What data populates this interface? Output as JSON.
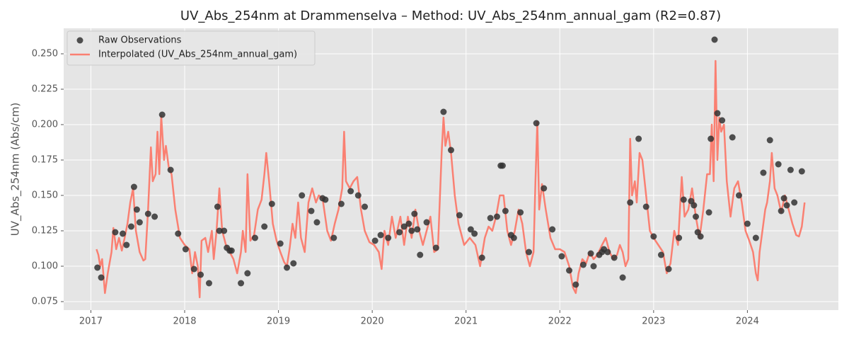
{
  "chart_data": {
    "type": "scatter",
    "title": "UV_Abs_254nm at Drammenselva – Method: UV_Abs_254nm_annual_gam (R2=0.87)",
    "y_label": "UV_Abs_254nm (Abs/cm)",
    "xlim": [
      2016.71,
      2024.97
    ],
    "ylim": [
      0.069,
      0.268
    ],
    "xticks": [
      2017,
      2018,
      2019,
      2020,
      2021,
      2022,
      2023,
      2024
    ],
    "yticks": [
      0.075,
      {
        "value": 0.1,
        "label": "0.100"
      },
      0.125,
      {
        "value": 0.15,
        "label": "0.150"
      },
      0.175,
      {
        "value": 0.2,
        "label": "0.200"
      },
      0.225,
      {
        "value": 0.25,
        "label": "0.250"
      }
    ],
    "grid": true,
    "legend": "upper left",
    "series": [
      {
        "name": "Raw Observations",
        "type": "scatter",
        "color": "#333333",
        "x": [
          2017.07,
          2017.11,
          2017.26,
          2017.34,
          2017.38,
          2017.43,
          2017.46,
          2017.49,
          2017.52,
          2017.61,
          2017.68,
          2017.76,
          2017.85,
          2017.93,
          2018.01,
          2018.1,
          2018.17,
          2018.26,
          2018.35,
          2018.37,
          2018.42,
          2018.45,
          2018.48,
          2018.5,
          2018.6,
          2018.67,
          2018.75,
          2018.85,
          2018.93,
          2019.02,
          2019.09,
          2019.16,
          2019.25,
          2019.35,
          2019.41,
          2019.47,
          2019.5,
          2019.59,
          2019.67,
          2019.77,
          2019.85,
          2019.92,
          2020.03,
          2020.09,
          2020.17,
          2020.29,
          2020.34,
          2020.39,
          2020.42,
          2020.45,
          2020.48,
          2020.51,
          2020.58,
          2020.68,
          2020.76,
          2020.84,
          2020.93,
          2021.05,
          2021.09,
          2021.17,
          2021.26,
          2021.33,
          2021.37,
          2021.39,
          2021.42,
          2021.48,
          2021.51,
          2021.58,
          2021.67,
          2021.75,
          2021.83,
          2021.92,
          2022.02,
          2022.1,
          2022.17,
          2022.25,
          2022.33,
          2022.36,
          2022.42,
          2022.45,
          2022.47,
          2022.51,
          2022.58,
          2022.67,
          2022.75,
          2022.84,
          2022.92,
          2023.0,
          2023.08,
          2023.16,
          2023.27,
          2023.32,
          2023.4,
          2023.43,
          2023.45,
          2023.47,
          2023.5,
          2023.59,
          2023.61,
          2023.65,
          2023.68,
          2023.73,
          2023.84,
          2023.91,
          2024.0,
          2024.09,
          2024.17,
          2024.24,
          2024.33,
          2024.36,
          2024.39,
          2024.42,
          2024.46,
          2024.5,
          2024.58
        ],
        "values": [
          0.099,
          0.092,
          0.124,
          0.123,
          0.115,
          0.128,
          0.156,
          0.14,
          0.131,
          0.137,
          0.135,
          0.207,
          0.168,
          0.123,
          0.112,
          0.098,
          0.094,
          0.088,
          0.142,
          0.125,
          0.125,
          0.113,
          0.111,
          0.111,
          0.088,
          0.095,
          0.12,
          0.128,
          0.144,
          0.116,
          0.099,
          0.102,
          0.15,
          0.139,
          0.131,
          0.148,
          0.147,
          0.12,
          0.144,
          0.153,
          0.15,
          0.142,
          0.118,
          0.122,
          0.12,
          0.124,
          0.128,
          0.13,
          0.125,
          0.137,
          0.126,
          0.108,
          0.131,
          0.113,
          0.209,
          0.182,
          0.136,
          0.126,
          0.123,
          0.106,
          0.134,
          0.135,
          0.171,
          0.171,
          0.139,
          0.122,
          0.12,
          0.138,
          0.11,
          0.201,
          0.155,
          0.126,
          0.107,
          0.097,
          0.087,
          0.101,
          0.109,
          0.1,
          0.108,
          0.11,
          0.112,
          0.11,
          0.106,
          0.092,
          0.145,
          0.19,
          0.142,
          0.121,
          0.108,
          0.098,
          0.12,
          0.147,
          0.146,
          0.143,
          0.135,
          0.124,
          0.121,
          0.138,
          0.19,
          0.26,
          0.208,
          0.203,
          0.191,
          0.15,
          0.13,
          0.12,
          0.166,
          0.189,
          0.172,
          0.139,
          0.148,
          0.143,
          0.168,
          0.145,
          0.167
        ]
      },
      {
        "name": "Interpolated (UV_Abs_254nm_annual_gam)",
        "type": "line",
        "color": "#fa8072",
        "x": [
          2017.06,
          2017.08,
          2017.1,
          2017.12,
          2017.15,
          2017.18,
          2017.22,
          2017.24,
          2017.27,
          2017.3,
          2017.33,
          2017.36,
          2017.39,
          2017.42,
          2017.45,
          2017.48,
          2017.52,
          2017.56,
          2017.58,
          2017.61,
          2017.64,
          2017.66,
          2017.69,
          2017.71,
          2017.73,
          2017.75,
          2017.78,
          2017.8,
          2017.83,
          2017.86,
          2017.9,
          2017.95,
          2018.0,
          2018.05,
          2018.08,
          2018.11,
          2018.14,
          2018.16,
          2018.18,
          2018.22,
          2018.25,
          2018.29,
          2018.31,
          2018.34,
          2018.37,
          2018.4,
          2018.44,
          2018.48,
          2018.52,
          2018.56,
          2018.6,
          2018.62,
          2018.65,
          2018.67,
          2018.7,
          2018.74,
          2018.78,
          2018.82,
          2018.85,
          2018.87,
          2018.9,
          2018.94,
          2018.98,
          2019.02,
          2019.06,
          2019.09,
          2019.12,
          2019.15,
          2019.18,
          2019.21,
          2019.24,
          2019.28,
          2019.32,
          2019.36,
          2019.4,
          2019.43,
          2019.47,
          2019.52,
          2019.56,
          2019.6,
          2019.64,
          2019.68,
          2019.7,
          2019.72,
          2019.76,
          2019.8,
          2019.84,
          2019.88,
          2019.92,
          2019.97,
          2020.02,
          2020.07,
          2020.1,
          2020.13,
          2020.17,
          2020.21,
          2020.25,
          2020.3,
          2020.34,
          2020.38,
          2020.42,
          2020.46,
          2020.5,
          2020.54,
          2020.58,
          2020.62,
          2020.66,
          2020.7,
          2020.74,
          2020.76,
          2020.78,
          2020.81,
          2020.84,
          2020.88,
          2020.92,
          2020.98,
          2021.04,
          2021.1,
          2021.15,
          2021.2,
          2021.24,
          2021.28,
          2021.32,
          2021.36,
          2021.4,
          2021.44,
          2021.48,
          2021.52,
          2021.56,
          2021.6,
          2021.64,
          2021.68,
          2021.72,
          2021.74,
          2021.76,
          2021.78,
          2021.81,
          2021.85,
          2021.9,
          2021.95,
          2022.0,
          2022.05,
          2022.1,
          2022.14,
          2022.17,
          2022.2,
          2022.24,
          2022.28,
          2022.32,
          2022.36,
          2022.4,
          2022.45,
          2022.49,
          2022.53,
          2022.57,
          2022.61,
          2022.64,
          2022.67,
          2022.7,
          2022.73,
          2022.75,
          2022.77,
          2022.8,
          2022.82,
          2022.85,
          2022.88,
          2022.92,
          2022.96,
          2023.0,
          2023.05,
          2023.1,
          2023.14,
          2023.18,
          2023.22,
          2023.26,
          2023.3,
          2023.33,
          2023.37,
          2023.41,
          2023.45,
          2023.49,
          2023.53,
          2023.57,
          2023.6,
          2023.62,
          2023.64,
          2023.66,
          2023.68,
          2023.7,
          2023.72,
          2023.75,
          2023.78,
          2023.82,
          2023.86,
          2023.9,
          2023.94,
          2023.98,
          2024.02,
          2024.06,
          2024.09,
          2024.11,
          2024.13,
          2024.16,
          2024.19,
          2024.21,
          2024.24,
          2024.26,
          2024.29,
          2024.32,
          2024.36,
          2024.4,
          2024.44,
          2024.48,
          2024.52,
          2024.55,
          2024.58,
          2024.61
        ],
        "values": [
          0.112,
          0.108,
          0.1,
          0.105,
          0.081,
          0.095,
          0.11,
          0.127,
          0.112,
          0.12,
          0.111,
          0.12,
          0.13,
          0.145,
          0.155,
          0.125,
          0.11,
          0.104,
          0.105,
          0.14,
          0.184,
          0.16,
          0.165,
          0.195,
          0.165,
          0.206,
          0.175,
          0.185,
          0.17,
          0.165,
          0.14,
          0.12,
          0.115,
          0.112,
          0.095,
          0.11,
          0.1,
          0.078,
          0.118,
          0.12,
          0.11,
          0.125,
          0.105,
          0.125,
          0.155,
          0.125,
          0.115,
          0.11,
          0.105,
          0.095,
          0.11,
          0.125,
          0.11,
          0.165,
          0.118,
          0.122,
          0.14,
          0.147,
          0.165,
          0.18,
          0.16,
          0.13,
          0.118,
          0.11,
          0.103,
          0.1,
          0.113,
          0.13,
          0.12,
          0.145,
          0.12,
          0.11,
          0.145,
          0.155,
          0.145,
          0.15,
          0.148,
          0.125,
          0.118,
          0.13,
          0.14,
          0.155,
          0.195,
          0.16,
          0.155,
          0.16,
          0.163,
          0.14,
          0.125,
          0.117,
          0.115,
          0.11,
          0.098,
          0.125,
          0.115,
          0.135,
          0.12,
          0.135,
          0.115,
          0.135,
          0.12,
          0.14,
          0.125,
          0.115,
          0.125,
          0.135,
          0.11,
          0.112,
          0.18,
          0.205,
          0.185,
          0.195,
          0.18,
          0.15,
          0.13,
          0.115,
          0.12,
          0.115,
          0.1,
          0.12,
          0.128,
          0.125,
          0.135,
          0.15,
          0.15,
          0.125,
          0.115,
          0.125,
          0.14,
          0.13,
          0.11,
          0.1,
          0.11,
          0.16,
          0.202,
          0.14,
          0.158,
          0.14,
          0.12,
          0.112,
          0.112,
          0.11,
          0.1,
          0.085,
          0.081,
          0.095,
          0.105,
          0.102,
          0.11,
          0.105,
          0.108,
          0.115,
          0.12,
          0.11,
          0.105,
          0.108,
          0.115,
          0.11,
          0.1,
          0.105,
          0.19,
          0.15,
          0.16,
          0.145,
          0.18,
          0.175,
          0.15,
          0.125,
          0.12,
          0.115,
          0.11,
          0.095,
          0.102,
          0.125,
          0.115,
          0.163,
          0.135,
          0.14,
          0.155,
          0.135,
          0.12,
          0.14,
          0.165,
          0.165,
          0.2,
          0.16,
          0.245,
          0.175,
          0.205,
          0.195,
          0.2,
          0.16,
          0.135,
          0.155,
          0.16,
          0.145,
          0.125,
          0.118,
          0.11,
          0.095,
          0.09,
          0.11,
          0.125,
          0.14,
          0.145,
          0.16,
          0.18,
          0.155,
          0.15,
          0.138,
          0.15,
          0.14,
          0.13,
          0.122,
          0.121,
          0.128,
          0.145
        ]
      }
    ]
  }
}
